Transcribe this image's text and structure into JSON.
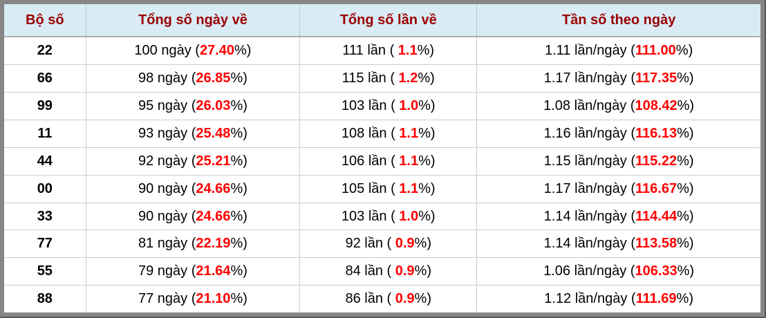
{
  "table": {
    "columns": [
      {
        "label": "Bộ số"
      },
      {
        "label": "Tổng số ngày về"
      },
      {
        "label": "Tổng số lần về"
      },
      {
        "label": "Tần số theo ngày"
      }
    ],
    "rows": [
      {
        "pair": "22",
        "days": {
          "prefix": "100 ngày (",
          "value": "27.40",
          "suffix": "%)"
        },
        "times": {
          "prefix": "111 lần ( ",
          "value": "1.1",
          "suffix": "%)"
        },
        "freq": {
          "prefix": "1.11 lần/ngày (",
          "value": "111.00",
          "suffix": "%)"
        }
      },
      {
        "pair": "66",
        "days": {
          "prefix": "98 ngày (",
          "value": "26.85",
          "suffix": "%)"
        },
        "times": {
          "prefix": "115 lần ( ",
          "value": "1.2",
          "suffix": "%)"
        },
        "freq": {
          "prefix": "1.17 lần/ngày (",
          "value": "117.35",
          "suffix": "%)"
        }
      },
      {
        "pair": "99",
        "days": {
          "prefix": "95 ngày (",
          "value": "26.03",
          "suffix": "%)"
        },
        "times": {
          "prefix": "103 lần ( ",
          "value": "1.0",
          "suffix": "%)"
        },
        "freq": {
          "prefix": "1.08 lần/ngày (",
          "value": "108.42",
          "suffix": "%)"
        }
      },
      {
        "pair": "11",
        "days": {
          "prefix": "93 ngày (",
          "value": "25.48",
          "suffix": "%)"
        },
        "times": {
          "prefix": "108 lần ( ",
          "value": "1.1",
          "suffix": "%)"
        },
        "freq": {
          "prefix": "1.16 lần/ngày (",
          "value": "116.13",
          "suffix": "%)"
        }
      },
      {
        "pair": "44",
        "days": {
          "prefix": "92 ngày (",
          "value": "25.21",
          "suffix": "%)"
        },
        "times": {
          "prefix": "106 lần ( ",
          "value": "1.1",
          "suffix": "%)"
        },
        "freq": {
          "prefix": "1.15 lần/ngày (",
          "value": "115.22",
          "suffix": "%)"
        }
      },
      {
        "pair": "00",
        "days": {
          "prefix": "90 ngày (",
          "value": "24.66",
          "suffix": "%)"
        },
        "times": {
          "prefix": "105 lần ( ",
          "value": "1.1",
          "suffix": "%)"
        },
        "freq": {
          "prefix": "1.17 lần/ngày (",
          "value": "116.67",
          "suffix": "%)"
        }
      },
      {
        "pair": "33",
        "days": {
          "prefix": "90 ngày (",
          "value": "24.66",
          "suffix": "%)"
        },
        "times": {
          "prefix": "103 lần ( ",
          "value": "1.0",
          "suffix": "%)"
        },
        "freq": {
          "prefix": "1.14 lần/ngày (",
          "value": "114.44",
          "suffix": "%)"
        }
      },
      {
        "pair": "77",
        "days": {
          "prefix": "81 ngày (",
          "value": "22.19",
          "suffix": "%)"
        },
        "times": {
          "prefix": "92 lần ( ",
          "value": "0.9",
          "suffix": "%)"
        },
        "freq": {
          "prefix": "1.14 lần/ngày (",
          "value": "113.58",
          "suffix": "%)"
        }
      },
      {
        "pair": "55",
        "days": {
          "prefix": "79 ngày (",
          "value": "21.64",
          "suffix": "%)"
        },
        "times": {
          "prefix": "84 lần ( ",
          "value": "0.9",
          "suffix": "%)"
        },
        "freq": {
          "prefix": "1.06 lần/ngày (",
          "value": "106.33",
          "suffix": "%)"
        }
      },
      {
        "pair": "88",
        "days": {
          "prefix": "77 ngày (",
          "value": "21.10",
          "suffix": "%)"
        },
        "times": {
          "prefix": "86 lần ( ",
          "value": "0.9",
          "suffix": "%)"
        },
        "freq": {
          "prefix": "1.12 lần/ngày (",
          "value": "111.69",
          "suffix": "%)"
        }
      }
    ]
  },
  "colors": {
    "header_background": "#d9ecf5",
    "header_text": "#9b0000",
    "highlight_red": "#ff0000",
    "body_text": "#000000",
    "grid_line": "#cccccc",
    "frame_gray": "#868686",
    "frame_dark": "#595959"
  }
}
